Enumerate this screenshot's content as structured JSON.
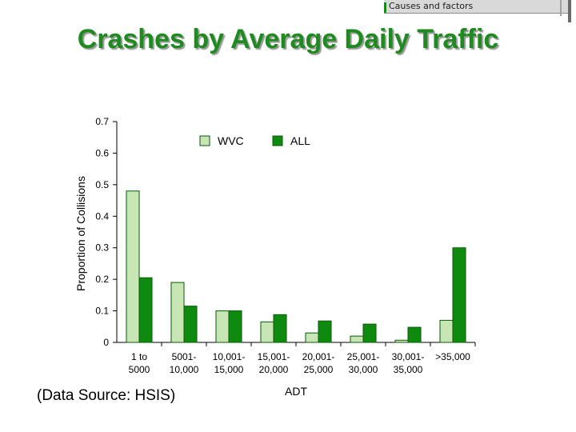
{
  "header": {
    "tag": "Causes and factors"
  },
  "title": "Crashes by Average Daily Traffic",
  "source_note": "(Data Source: HSIS)",
  "colors": {
    "title": "#1f8a1f",
    "wvc": "#c8e6b4",
    "all": "#0e8a0e",
    "bar_stroke": "#0a5a0a"
  },
  "chart_data": {
    "type": "bar",
    "categories": [
      [
        "1 to",
        "5000"
      ],
      [
        "5001-",
        "10,000"
      ],
      [
        "10,001-",
        "15,000"
      ],
      [
        "15,001-",
        "20,000"
      ],
      [
        "20,001-",
        "25,000"
      ],
      [
        "25,001-",
        "30,000"
      ],
      [
        "30,001-",
        "35,000"
      ],
      [
        ">35,000"
      ]
    ],
    "series": [
      {
        "name": "WVC",
        "values": [
          0.48,
          0.19,
          0.1,
          0.065,
          0.03,
          0.02,
          0.007,
          0.07
        ]
      },
      {
        "name": "ALL",
        "values": [
          0.205,
          0.115,
          0.1,
          0.088,
          0.068,
          0.058,
          0.048,
          0.3
        ]
      }
    ],
    "xlabel": "ADT",
    "ylabel": "Proportion of Collisions",
    "ylim": [
      0,
      0.7
    ],
    "yticks": [
      "0",
      "0.1",
      "0.2",
      "0.3",
      "0.4",
      "0.5",
      "0.6",
      "0.7"
    ],
    "grid": false,
    "legend_position": "top-center"
  }
}
